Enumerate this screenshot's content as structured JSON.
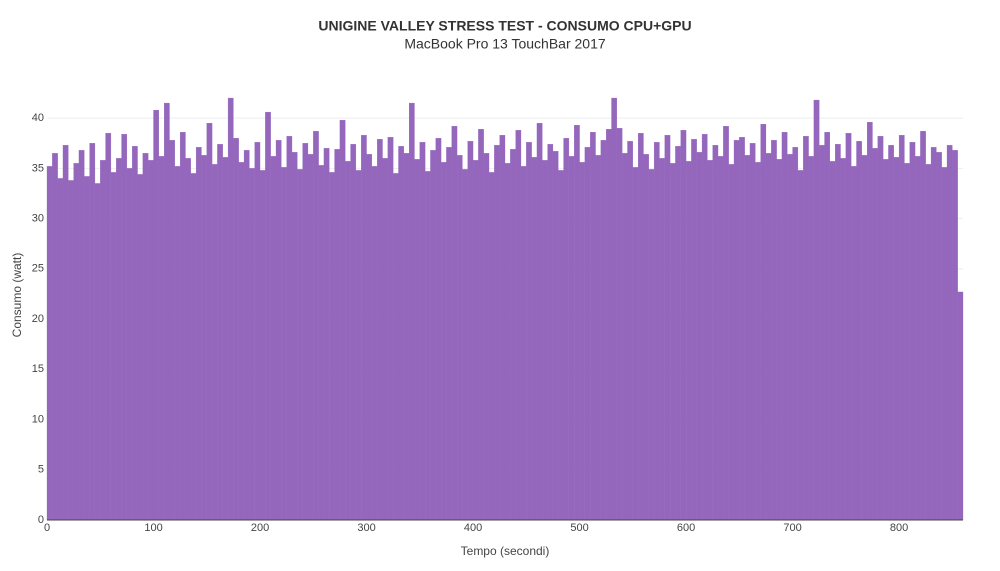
{
  "chart_data": {
    "type": "bar",
    "title": "UNIGINE VALLEY STRESS TEST - CONSUMO CPU+GPU",
    "subtitle": "MacBook Pro 13 TouchBar 2017",
    "x_label": "Tempo (secondi)",
    "y_label": "Consumo (watt)",
    "color": "#9467bd",
    "grid": true,
    "xlim": [
      0,
      860
    ],
    "ylim": [
      0,
      43
    ],
    "xticks": [
      0,
      100,
      200,
      300,
      400,
      500,
      600,
      700,
      800
    ],
    "yticks": [
      0,
      5,
      10,
      15,
      20,
      25,
      30,
      35,
      40
    ],
    "x": [
      0,
      5,
      10,
      15,
      20,
      25,
      30,
      35,
      40,
      45,
      50,
      55,
      60,
      65,
      70,
      75,
      80,
      85,
      90,
      95,
      100,
      105,
      110,
      115,
      120,
      125,
      130,
      135,
      140,
      145,
      150,
      155,
      160,
      165,
      170,
      175,
      180,
      185,
      190,
      195,
      200,
      205,
      210,
      215,
      220,
      225,
      230,
      235,
      240,
      245,
      250,
      255,
      260,
      265,
      270,
      275,
      280,
      285,
      290,
      295,
      300,
      305,
      310,
      315,
      320,
      325,
      330,
      335,
      340,
      345,
      350,
      355,
      360,
      365,
      370,
      375,
      380,
      385,
      390,
      395,
      400,
      405,
      410,
      415,
      420,
      425,
      430,
      435,
      440,
      445,
      450,
      455,
      460,
      465,
      470,
      475,
      480,
      485,
      490,
      495,
      500,
      505,
      510,
      515,
      520,
      525,
      530,
      535,
      540,
      545,
      550,
      555,
      560,
      565,
      570,
      575,
      580,
      585,
      590,
      595,
      600,
      605,
      610,
      615,
      620,
      625,
      630,
      635,
      640,
      645,
      650,
      655,
      660,
      665,
      670,
      675,
      680,
      685,
      690,
      695,
      700,
      705,
      710,
      715,
      720,
      725,
      730,
      735,
      740,
      745,
      750,
      755,
      760,
      765,
      770,
      775,
      780,
      785,
      790,
      795,
      800,
      805,
      810,
      815,
      820,
      825,
      830,
      835,
      840,
      845,
      850,
      855
    ],
    "values": [
      35.2,
      36.5,
      34,
      37.3,
      33.8,
      35.5,
      36.8,
      34.2,
      37.5,
      33.5,
      35.8,
      38.5,
      34.6,
      36,
      38.4,
      35,
      37.2,
      34.4,
      36.5,
      35.8,
      40.8,
      36.2,
      41.5,
      37.8,
      35.2,
      38.6,
      36,
      34.5,
      37.1,
      36.3,
      39.5,
      35.4,
      37.4,
      36.1,
      42,
      38,
      35.6,
      36.8,
      35,
      37.6,
      34.8,
      40.6,
      36.2,
      37.8,
      35.1,
      38.2,
      36.6,
      34.9,
      37.5,
      36.4,
      38.7,
      35.3,
      37,
      34.6,
      36.9,
      39.8,
      35.7,
      37.4,
      34.8,
      38.3,
      36.4,
      35.2,
      37.9,
      36,
      38.1,
      34.5,
      37.2,
      36.5,
      41.5,
      35.9,
      37.6,
      34.7,
      36.8,
      38,
      35.6,
      37.1,
      39.2,
      36.3,
      34.9,
      37.7,
      35.8,
      38.9,
      36.5,
      34.6,
      37.3,
      38.3,
      35.5,
      36.9,
      38.8,
      35.2,
      37.6,
      36.1,
      39.5,
      35.8,
      37.4,
      36.7,
      34.8,
      38,
      36.2,
      39.3,
      35.6,
      37.1,
      38.6,
      36.3,
      37.8,
      38.9,
      42,
      39,
      36.5,
      37.7,
      35.1,
      38.5,
      36.4,
      34.9,
      37.6,
      36,
      38.3,
      35.5,
      37.2,
      38.8,
      35.7,
      37.9,
      36.6,
      38.4,
      35.8,
      37.3,
      36.2,
      39.2,
      35.4,
      37.8,
      38.1,
      36.3,
      37.5,
      35.6,
      39.4,
      36.5,
      37.8,
      35.9,
      38.6,
      36.4,
      37.1,
      34.8,
      38.2,
      36.2,
      41.8,
      37.3,
      38.6,
      35.7,
      37.4,
      36,
      38.5,
      35.2,
      37.7,
      36.3,
      39.6,
      37,
      38.2,
      35.9,
      37.3,
      36.1,
      38.3,
      35.5,
      37.6,
      36.2,
      38.7,
      35.4,
      37.1,
      36.6,
      35.1,
      37.3,
      36.8,
      22.7
    ]
  }
}
